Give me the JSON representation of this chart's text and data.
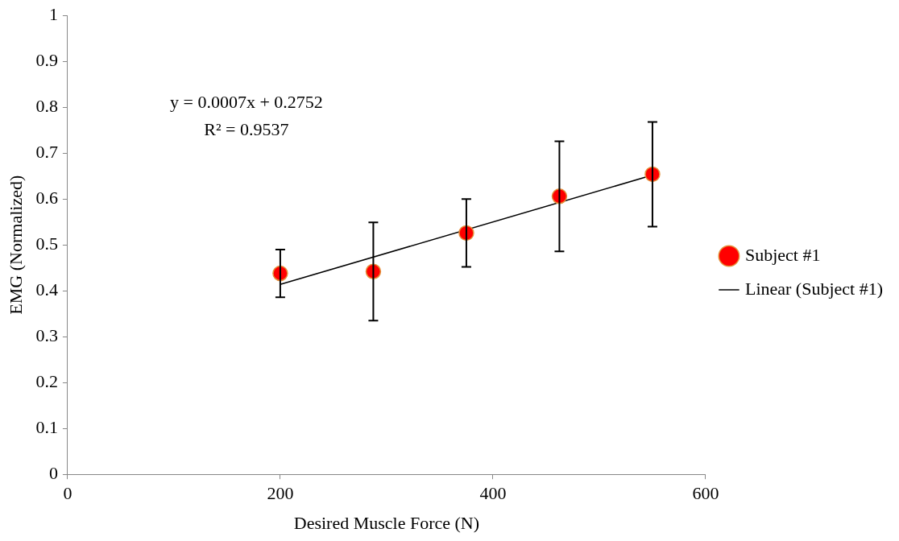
{
  "chart_data": {
    "type": "scatter",
    "xlabel": "Desired Muscle Force (N)",
    "ylabel": "EMG (Normalized)",
    "series": [
      {
        "name": "Subject #1",
        "marker": "circle",
        "color": "#ff0000",
        "x": [
          200,
          287.5,
          375,
          462.5,
          550
        ],
        "values": [
          0.438,
          0.442,
          0.526,
          0.606,
          0.654
        ],
        "errors": [
          0.052,
          0.107,
          0.074,
          0.12,
          0.114
        ]
      },
      {
        "name": "Linear (Subject #1)",
        "type": "line",
        "marker": "none",
        "color": "#000000",
        "x": [
          200,
          550
        ],
        "values": [
          0.414,
          0.652
        ]
      }
    ],
    "annotations": [
      "y = 0.0007x + 0.2752",
      "R² = 0.9537"
    ],
    "xlim": [
      0,
      600
    ],
    "xticks": [
      0,
      200,
      400,
      600
    ],
    "ylim": [
      0,
      1
    ],
    "yticks": [
      0,
      0.1,
      0.2,
      0.3,
      0.4,
      0.5,
      0.6,
      0.7,
      0.8,
      0.9,
      1
    ],
    "grid": false,
    "legend": "right"
  }
}
